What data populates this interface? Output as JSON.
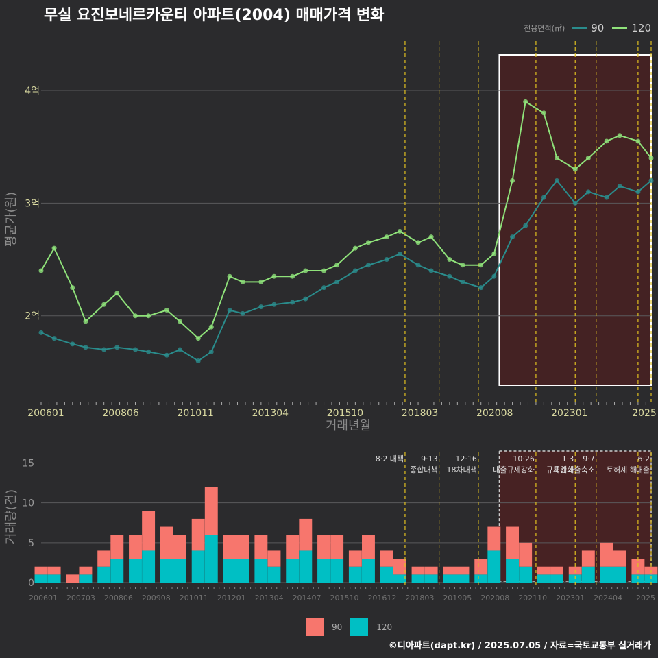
{
  "title": "무실 요진보네르카운티 아파트(2004) 매매가격 변화",
  "legend_top": {
    "caption": "전용면적(㎡)",
    "items": [
      {
        "label": "90",
        "color": "#2a8c8c"
      },
      {
        "label": "120",
        "color": "#8fe27a"
      }
    ]
  },
  "legend_bottom": {
    "items": [
      {
        "label": "90",
        "color": "#f7766d"
      },
      {
        "label": "120",
        "color": "#00bfc4"
      }
    ]
  },
  "footer": "©디아파트(dapt.kr) / 2025.07.05 / 자료=국토교통부 실거래가",
  "chart_data": [
    {
      "type": "line",
      "title": "무실 요진보네르카운티 아파트(2004) 매매가격 변화",
      "xlabel": "거래년월",
      "ylabel": "평균가(원)",
      "x_range": [
        "2006-01",
        "2025-06"
      ],
      "ylim": [
        1.25,
        4.45
      ],
      "y_unit": "억",
      "y_ticks": [
        {
          "value": 2,
          "label": "2억"
        },
        {
          "value": 3,
          "label": "3억"
        },
        {
          "value": 4,
          "label": "4억"
        }
      ],
      "x_ticks": [
        "200601",
        "200806",
        "201011",
        "201304",
        "201510",
        "201803",
        "202008",
        "202301",
        "2025"
      ],
      "grid": true,
      "legend": "top-right",
      "highlight_range": [
        "2020-08",
        "2025-06"
      ],
      "series": [
        {
          "name": "90",
          "color": "#2a8c8c",
          "x": [
            "2006-01",
            "2006-06",
            "2007-01",
            "2007-06",
            "2008-01",
            "2008-06",
            "2009-01",
            "2009-06",
            "2010-01",
            "2010-06",
            "2011-01",
            "2011-06",
            "2012-01",
            "2012-06",
            "2013-01",
            "2013-06",
            "2014-01",
            "2014-06",
            "2015-01",
            "2015-06",
            "2016-01",
            "2016-06",
            "2017-01",
            "2017-06",
            "2018-01",
            "2018-06",
            "2019-01",
            "2019-06",
            "2020-01",
            "2020-06",
            "2021-01",
            "2021-06",
            "2022-01",
            "2022-06",
            "2023-01",
            "2023-06",
            "2024-01",
            "2024-06",
            "2025-01",
            "2025-06"
          ],
          "y": [
            1.85,
            1.8,
            1.75,
            1.72,
            1.7,
            1.72,
            1.7,
            1.68,
            1.65,
            1.7,
            1.6,
            1.68,
            2.05,
            2.02,
            2.08,
            2.1,
            2.12,
            2.15,
            2.25,
            2.3,
            2.4,
            2.45,
            2.5,
            2.55,
            2.45,
            2.4,
            2.35,
            2.3,
            2.25,
            2.35,
            2.7,
            2.8,
            3.05,
            3.2,
            3.0,
            3.1,
            3.05,
            3.15,
            3.1,
            3.2
          ]
        },
        {
          "name": "120",
          "color": "#8fe27a",
          "x": [
            "2006-01",
            "2006-06",
            "2007-01",
            "2007-06",
            "2008-01",
            "2008-06",
            "2009-01",
            "2009-06",
            "2010-01",
            "2010-06",
            "2011-01",
            "2011-06",
            "2012-01",
            "2012-06",
            "2013-01",
            "2013-06",
            "2014-01",
            "2014-06",
            "2015-01",
            "2015-06",
            "2016-01",
            "2016-06",
            "2017-01",
            "2017-06",
            "2018-01",
            "2018-06",
            "2019-01",
            "2019-06",
            "2020-01",
            "2020-06",
            "2021-01",
            "2021-06",
            "2022-01",
            "2022-06",
            "2023-01",
            "2023-06",
            "2024-01",
            "2024-06",
            "2025-01",
            "2025-06"
          ],
          "y": [
            2.4,
            2.6,
            2.25,
            1.95,
            2.1,
            2.2,
            2.0,
            2.0,
            2.05,
            1.95,
            1.8,
            1.9,
            2.35,
            2.3,
            2.3,
            2.35,
            2.35,
            2.4,
            2.4,
            2.45,
            2.6,
            2.65,
            2.7,
            2.75,
            2.65,
            2.7,
            2.5,
            2.45,
            2.45,
            2.55,
            3.2,
            3.9,
            3.8,
            3.4,
            3.3,
            3.4,
            3.55,
            3.6,
            3.55,
            3.4
          ]
        }
      ],
      "policy_lines": [
        "2017-08",
        "2018-09",
        "2019-12",
        "2021-10",
        "2023-01",
        "2023-09",
        "2025-01",
        "2025-06"
      ]
    },
    {
      "type": "bar",
      "xlabel": "",
      "ylabel": "거래량(건)",
      "ylim": [
        0,
        16.5
      ],
      "y_ticks": [
        0,
        5,
        10,
        15
      ],
      "x_ticks": [
        "200601",
        "200703",
        "200806",
        "200908",
        "201011",
        "201201",
        "201304",
        "201407",
        "201510",
        "201612",
        "201803",
        "201905",
        "202008",
        "202110",
        "202301",
        "202404",
        "2025"
      ],
      "stacked": true,
      "highlight_range": [
        "2020-08",
        "2025-06"
      ],
      "series": [
        {
          "name": "90",
          "color": "#f7766d",
          "x": [
            "2006-01",
            "2006-06",
            "2007-01",
            "2007-06",
            "2008-01",
            "2008-06",
            "2009-01",
            "2009-06",
            "2010-01",
            "2010-06",
            "2011-01",
            "2011-06",
            "2012-01",
            "2012-06",
            "2013-01",
            "2013-06",
            "2014-01",
            "2014-06",
            "2015-01",
            "2015-06",
            "2016-01",
            "2016-06",
            "2017-01",
            "2017-06",
            "2018-01",
            "2018-06",
            "2019-01",
            "2019-06",
            "2020-01",
            "2020-06",
            "2021-01",
            "2021-06",
            "2022-01",
            "2022-06",
            "2023-01",
            "2023-06",
            "2024-01",
            "2024-06",
            "2025-01",
            "2025-06"
          ],
          "y": [
            1,
            1,
            1,
            1,
            2,
            3,
            3,
            5,
            4,
            3,
            4,
            6,
            3,
            3,
            3,
            2,
            3,
            4,
            3,
            3,
            2,
            3,
            2,
            2,
            1,
            1,
            1,
            1,
            2,
            3,
            4,
            3,
            1,
            1,
            1,
            2,
            3,
            2,
            2,
            1
          ]
        },
        {
          "name": "120",
          "color": "#00bfc4",
          "x": [
            "2006-01",
            "2006-06",
            "2007-01",
            "2007-06",
            "2008-01",
            "2008-06",
            "2009-01",
            "2009-06",
            "2010-01",
            "2010-06",
            "2011-01",
            "2011-06",
            "2012-01",
            "2012-06",
            "2013-01",
            "2013-06",
            "2014-01",
            "2014-06",
            "2015-01",
            "2015-06",
            "2016-01",
            "2016-06",
            "2017-01",
            "2017-06",
            "2018-01",
            "2018-06",
            "2019-01",
            "2019-06",
            "2020-01",
            "2020-06",
            "2021-01",
            "2021-06",
            "2022-01",
            "2022-06",
            "2023-01",
            "2023-06",
            "2024-01",
            "2024-06",
            "2025-01",
            "2025-06"
          ],
          "y": [
            1,
            1,
            0,
            1,
            2,
            3,
            3,
            4,
            3,
            3,
            4,
            6,
            3,
            3,
            3,
            2,
            3,
            4,
            3,
            3,
            2,
            3,
            2,
            1,
            1,
            1,
            1,
            1,
            1,
            4,
            3,
            2,
            1,
            1,
            1,
            2,
            2,
            2,
            1,
            1
          ]
        }
      ],
      "annotations": [
        {
          "date": "2017-08",
          "lines": [
            "8·2 대책"
          ]
        },
        {
          "date": "2018-09",
          "lines": [
            "9·13",
            "종합대책"
          ]
        },
        {
          "date": "2019-12",
          "lines": [
            "12·16",
            "18차대책"
          ]
        },
        {
          "date": "2021-10",
          "lines": [
            "10·26",
            "대출규제강화"
          ]
        },
        {
          "date": "2023-01",
          "lines": [
            "1·3",
            "규제완화"
          ]
        },
        {
          "date": "2023-09",
          "lines": [
            "9·7",
            "특례대출축소"
          ]
        },
        {
          "date": "2025-01",
          "lines": [
            "",
            "토허제 해"
          ]
        },
        {
          "date": "2025-06",
          "lines": [
            "6·2",
            "대출"
          ]
        }
      ]
    }
  ]
}
